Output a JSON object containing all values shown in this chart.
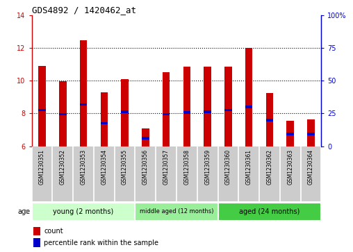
{
  "title": "GDS4892 / 1420462_at",
  "samples": [
    "GSM1230351",
    "GSM1230352",
    "GSM1230353",
    "GSM1230354",
    "GSM1230355",
    "GSM1230356",
    "GSM1230357",
    "GSM1230358",
    "GSM1230359",
    "GSM1230360",
    "GSM1230361",
    "GSM1230362",
    "GSM1230363",
    "GSM1230364"
  ],
  "count_values": [
    10.9,
    9.95,
    12.45,
    9.3,
    10.1,
    7.1,
    10.5,
    10.85,
    10.85,
    10.85,
    12.0,
    9.25,
    7.55,
    7.65
  ],
  "percentile_values": [
    8.2,
    7.95,
    8.55,
    7.4,
    8.1,
    6.5,
    7.95,
    8.05,
    8.1,
    8.2,
    8.4,
    7.6,
    6.75,
    6.75
  ],
  "ylim_left": [
    6,
    14
  ],
  "ylim_right": [
    0,
    100
  ],
  "yticks_left": [
    6,
    8,
    10,
    12,
    14
  ],
  "yticks_right": [
    0,
    25,
    50,
    75,
    100
  ],
  "ytick_labels_right": [
    "0",
    "25",
    "50",
    "75",
    "100%"
  ],
  "bar_bottom": 6.0,
  "bar_width": 0.35,
  "count_color": "#cc0000",
  "percentile_color": "#0000cc",
  "groups": [
    {
      "label": "young (2 months)",
      "start": 0,
      "end": 5,
      "color": "#ccffcc"
    },
    {
      "label": "middle aged (12 months)",
      "start": 5,
      "end": 9,
      "color": "#99ee99"
    },
    {
      "label": "aged (24 months)",
      "start": 9,
      "end": 14,
      "color": "#44cc44"
    }
  ],
  "age_label": "age",
  "legend_count_label": "count",
  "legend_percentile_label": "percentile rank within the sample",
  "background_color": "#ffffff",
  "xticklabel_bg": "#cccccc",
  "grid_color": "#000000",
  "tick_color_left": "#cc0000",
  "tick_color_right": "#0000cc",
  "grid_yticks": [
    8,
    10,
    12
  ]
}
